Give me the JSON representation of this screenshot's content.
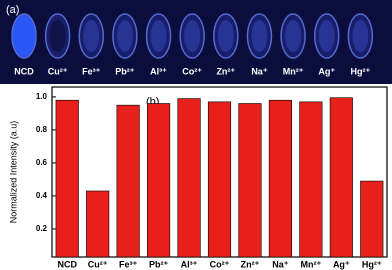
{
  "panel_a_label": "(a)",
  "chart_data": {
    "type": "bar",
    "annotation": "(b)",
    "y_label": "Normalized Intensity (a.u)",
    "categories": [
      "NCD",
      "Cu²⁺",
      "Fe³⁺",
      "Pb²⁺",
      "Al³⁺",
      "Co²⁺",
      "Zn²⁺",
      "Na⁺",
      "Mn²⁺",
      "Ag⁺",
      "Hg²⁺"
    ],
    "values": [
      0.98,
      0.43,
      0.95,
      0.96,
      0.99,
      0.97,
      0.96,
      0.98,
      0.97,
      0.995,
      0.49
    ],
    "color": "#e8201c",
    "ylim": [
      0.03,
      1.06
    ],
    "yticks": [
      {
        "value": 0.2,
        "label": "0.2"
      },
      {
        "value": 0.4,
        "label": "0.4"
      },
      {
        "value": 0.6,
        "label": "0.6"
      },
      {
        "value": 0.8,
        "label": "0.8"
      },
      {
        "value": 1.0,
        "label": "1.0"
      }
    ],
    "grid": false
  }
}
